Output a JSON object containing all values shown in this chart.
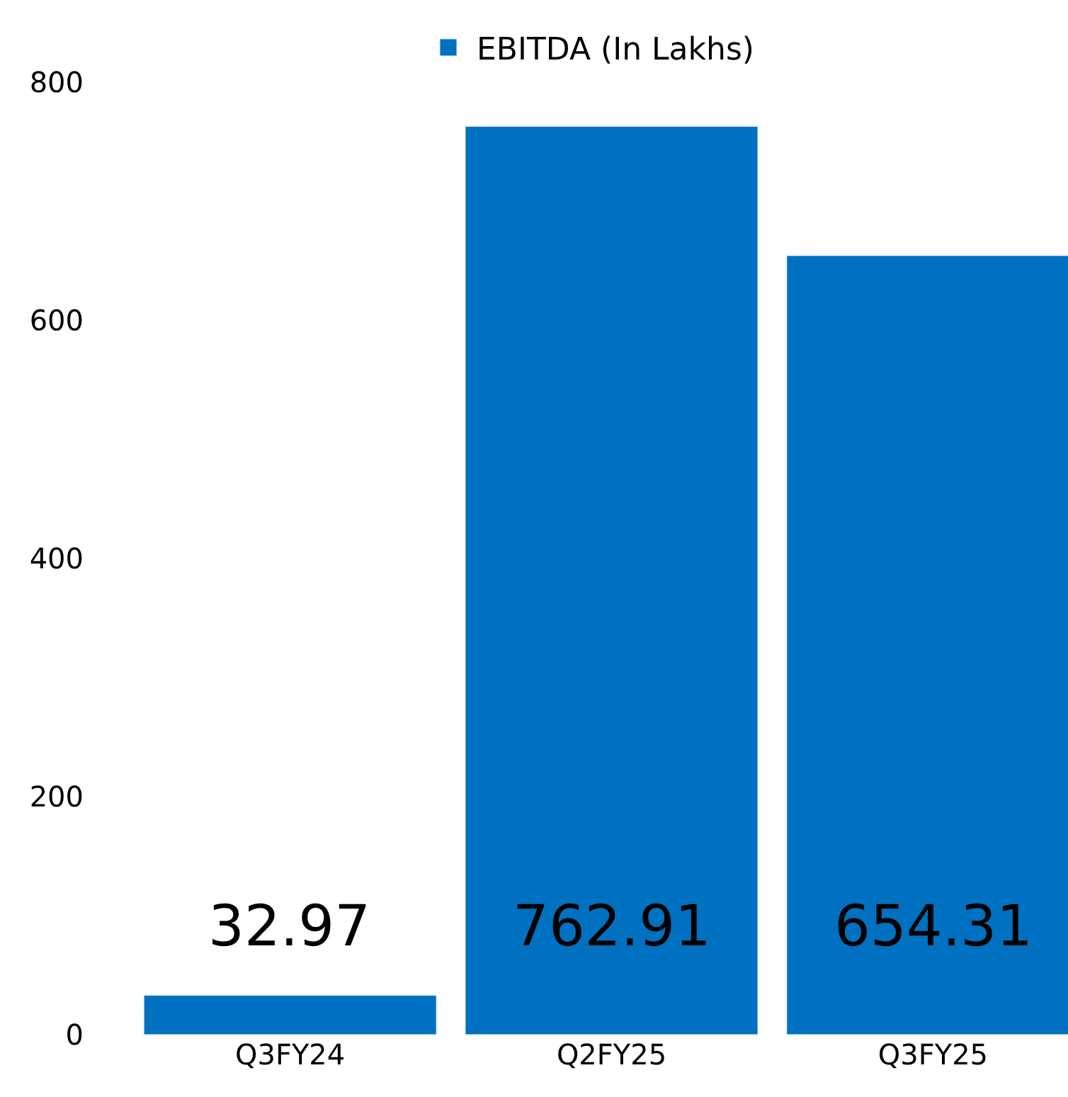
{
  "chart_data": {
    "type": "bar",
    "categories": [
      "Q3FY24",
      "Q2FY25",
      "Q3FY25"
    ],
    "series": [
      {
        "name": "EBITDA (In Lakhs)",
        "color": "#0070c0",
        "values": [
          32.97,
          762.91,
          654.31
        ]
      }
    ],
    "ylim": [
      0,
      800
    ],
    "yticks": [
      0,
      200,
      400,
      600,
      800
    ],
    "legend": "top",
    "data_labels": true
  }
}
